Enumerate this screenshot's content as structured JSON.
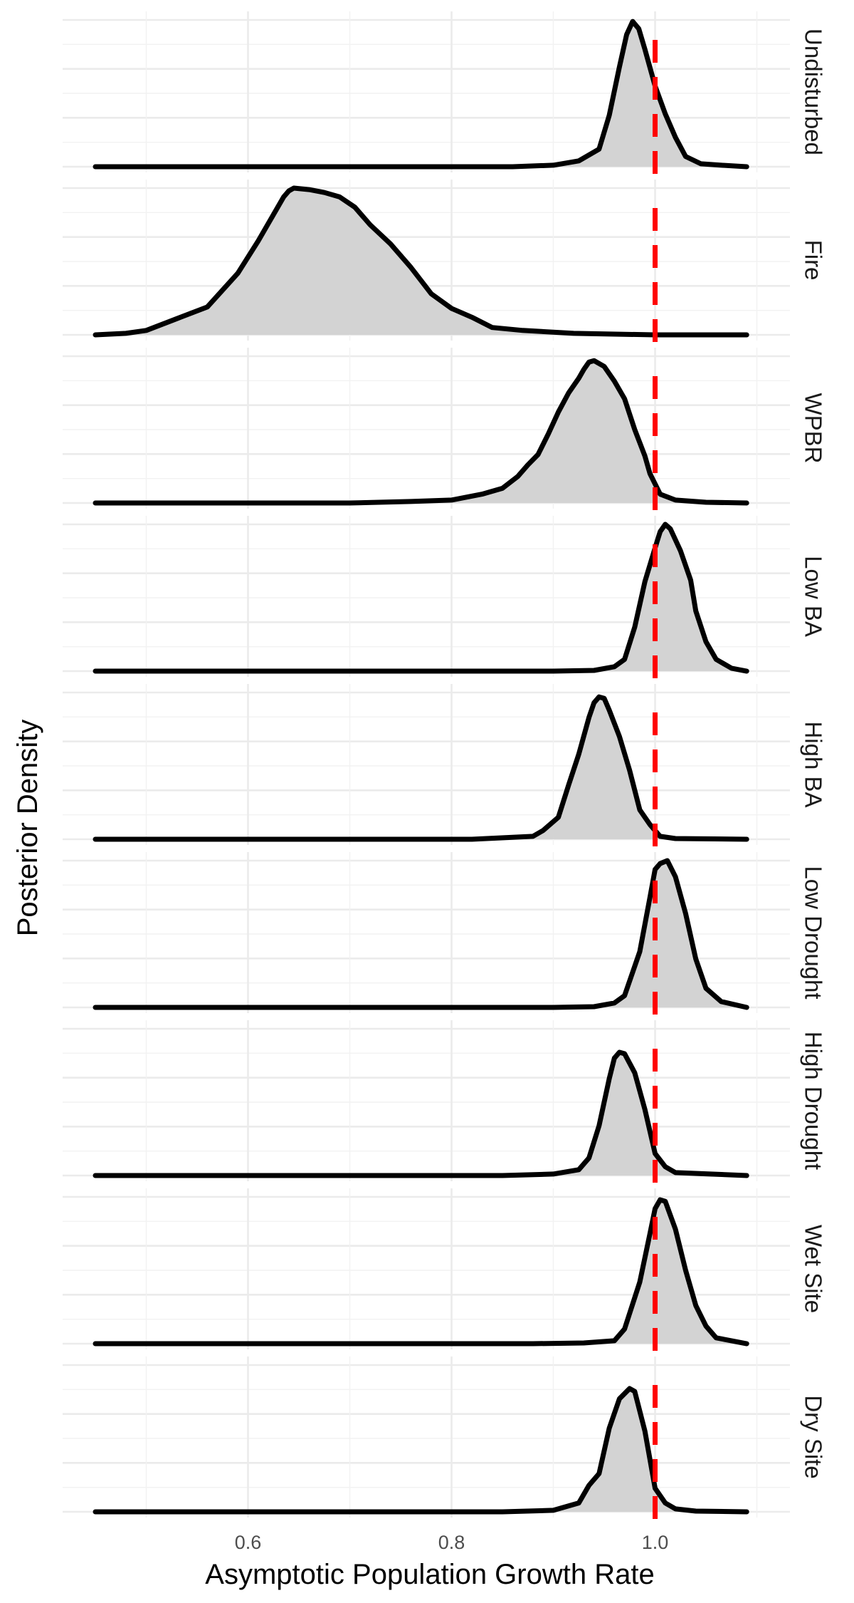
{
  "chart_data": {
    "type": "area",
    "facet_layout": "stacked vertically, one panel per treatment, strip labels on right (rotated)",
    "xlabel": "Asymptotic Population Growth Rate",
    "ylabel": "Posterior Density",
    "xlim": [
      0.42,
      1.13
    ],
    "x_ticks": [
      0.6,
      0.8,
      1.0
    ],
    "x_tick_labels": [
      "0.6",
      "0.8",
      "1.0"
    ],
    "reference_line": {
      "x": 1.0,
      "color": "#ff0000",
      "style": "dashed"
    },
    "fill_color": "#d3d3d3",
    "line_color": "#000000",
    "grid": true,
    "panels": [
      {
        "label": "Undisturbed",
        "points": [
          [
            0.45,
            0
          ],
          [
            0.8,
            0
          ],
          [
            0.86,
            0
          ],
          [
            0.9,
            0.01
          ],
          [
            0.925,
            0.04
          ],
          [
            0.945,
            0.12
          ],
          [
            0.955,
            0.35
          ],
          [
            0.965,
            0.68
          ],
          [
            0.972,
            0.9
          ],
          [
            0.978,
            0.99
          ],
          [
            0.984,
            0.94
          ],
          [
            0.99,
            0.8
          ],
          [
            1.0,
            0.55
          ],
          [
            1.01,
            0.36
          ],
          [
            1.02,
            0.2
          ],
          [
            1.03,
            0.07
          ],
          [
            1.045,
            0.02
          ],
          [
            1.065,
            0.01
          ],
          [
            1.09,
            0
          ]
        ]
      },
      {
        "label": "Fire",
        "points": [
          [
            0.45,
            0
          ],
          [
            0.48,
            0.01
          ],
          [
            0.5,
            0.03
          ],
          [
            0.53,
            0.11
          ],
          [
            0.56,
            0.19
          ],
          [
            0.59,
            0.42
          ],
          [
            0.61,
            0.64
          ],
          [
            0.625,
            0.82
          ],
          [
            0.635,
            0.94
          ],
          [
            0.64,
            0.98
          ],
          [
            0.645,
            1.0
          ],
          [
            0.66,
            0.99
          ],
          [
            0.675,
            0.97
          ],
          [
            0.69,
            0.94
          ],
          [
            0.705,
            0.87
          ],
          [
            0.72,
            0.75
          ],
          [
            0.74,
            0.62
          ],
          [
            0.76,
            0.46
          ],
          [
            0.78,
            0.28
          ],
          [
            0.8,
            0.18
          ],
          [
            0.82,
            0.12
          ],
          [
            0.84,
            0.05
          ],
          [
            0.87,
            0.03
          ],
          [
            0.92,
            0.01
          ],
          [
            1.0,
            0
          ],
          [
            1.09,
            0
          ]
        ]
      },
      {
        "label": "WPBR",
        "points": [
          [
            0.45,
            0
          ],
          [
            0.7,
            0
          ],
          [
            0.76,
            0.01
          ],
          [
            0.8,
            0.02
          ],
          [
            0.83,
            0.06
          ],
          [
            0.85,
            0.1
          ],
          [
            0.865,
            0.18
          ],
          [
            0.875,
            0.26
          ],
          [
            0.885,
            0.33
          ],
          [
            0.895,
            0.47
          ],
          [
            0.905,
            0.62
          ],
          [
            0.915,
            0.75
          ],
          [
            0.925,
            0.85
          ],
          [
            0.93,
            0.91
          ],
          [
            0.935,
            0.96
          ],
          [
            0.94,
            0.97
          ],
          [
            0.95,
            0.93
          ],
          [
            0.96,
            0.83
          ],
          [
            0.97,
            0.71
          ],
          [
            0.98,
            0.5
          ],
          [
            0.99,
            0.32
          ],
          [
            0.995,
            0.2
          ],
          [
            1.005,
            0.06
          ],
          [
            1.02,
            0.02
          ],
          [
            1.05,
            0.005
          ],
          [
            1.09,
            0
          ]
        ]
      },
      {
        "label": "Low BA",
        "points": [
          [
            0.45,
            0
          ],
          [
            0.9,
            0
          ],
          [
            0.94,
            0.005
          ],
          [
            0.96,
            0.03
          ],
          [
            0.97,
            0.08
          ],
          [
            0.98,
            0.3
          ],
          [
            0.99,
            0.61
          ],
          [
            1.0,
            0.84
          ],
          [
            1.005,
            0.95
          ],
          [
            1.01,
            1.0
          ],
          [
            1.015,
            0.97
          ],
          [
            1.025,
            0.82
          ],
          [
            1.035,
            0.62
          ],
          [
            1.04,
            0.41
          ],
          [
            1.05,
            0.2
          ],
          [
            1.06,
            0.08
          ],
          [
            1.075,
            0.02
          ],
          [
            1.09,
            0
          ]
        ]
      },
      {
        "label": "High BA",
        "points": [
          [
            0.45,
            0
          ],
          [
            0.82,
            0
          ],
          [
            0.88,
            0.02
          ],
          [
            0.89,
            0.06
          ],
          [
            0.905,
            0.15
          ],
          [
            0.915,
            0.37
          ],
          [
            0.925,
            0.58
          ],
          [
            0.935,
            0.83
          ],
          [
            0.94,
            0.93
          ],
          [
            0.945,
            0.97
          ],
          [
            0.95,
            0.96
          ],
          [
            0.955,
            0.88
          ],
          [
            0.965,
            0.7
          ],
          [
            0.975,
            0.47
          ],
          [
            0.985,
            0.2
          ],
          [
            0.995,
            0.1
          ],
          [
            1.005,
            0.02
          ],
          [
            1.02,
            0.005
          ],
          [
            1.09,
            0
          ]
        ]
      },
      {
        "label": "Low Drought",
        "points": [
          [
            0.45,
            0
          ],
          [
            0.9,
            0
          ],
          [
            0.94,
            0.005
          ],
          [
            0.96,
            0.03
          ],
          [
            0.97,
            0.08
          ],
          [
            0.985,
            0.38
          ],
          [
            0.995,
            0.75
          ],
          [
            1.0,
            0.94
          ],
          [
            1.005,
            0.98
          ],
          [
            1.012,
            1.0
          ],
          [
            1.02,
            0.89
          ],
          [
            1.03,
            0.64
          ],
          [
            1.04,
            0.33
          ],
          [
            1.05,
            0.13
          ],
          [
            1.065,
            0.04
          ],
          [
            1.09,
            0
          ]
        ]
      },
      {
        "label": "High Drought",
        "points": [
          [
            0.45,
            0
          ],
          [
            0.85,
            0
          ],
          [
            0.9,
            0.01
          ],
          [
            0.925,
            0.04
          ],
          [
            0.935,
            0.12
          ],
          [
            0.945,
            0.34
          ],
          [
            0.955,
            0.66
          ],
          [
            0.96,
            0.8
          ],
          [
            0.965,
            0.84
          ],
          [
            0.97,
            0.83
          ],
          [
            0.98,
            0.7
          ],
          [
            0.99,
            0.45
          ],
          [
            1.0,
            0.15
          ],
          [
            1.01,
            0.06
          ],
          [
            1.02,
            0.02
          ],
          [
            1.09,
            0
          ]
        ]
      },
      {
        "label": "Wet Site",
        "points": [
          [
            0.45,
            0
          ],
          [
            0.88,
            0
          ],
          [
            0.93,
            0.005
          ],
          [
            0.96,
            0.02
          ],
          [
            0.97,
            0.1
          ],
          [
            0.985,
            0.42
          ],
          [
            0.995,
            0.75
          ],
          [
            1.0,
            0.92
          ],
          [
            1.005,
            0.98
          ],
          [
            1.01,
            0.97
          ],
          [
            1.02,
            0.78
          ],
          [
            1.03,
            0.5
          ],
          [
            1.04,
            0.26
          ],
          [
            1.05,
            0.12
          ],
          [
            1.06,
            0.04
          ],
          [
            1.075,
            0.02
          ],
          [
            1.09,
            0
          ]
        ]
      },
      {
        "label": "Dry Site",
        "points": [
          [
            0.45,
            0
          ],
          [
            0.85,
            0
          ],
          [
            0.9,
            0.01
          ],
          [
            0.925,
            0.06
          ],
          [
            0.935,
            0.18
          ],
          [
            0.945,
            0.26
          ],
          [
            0.955,
            0.57
          ],
          [
            0.965,
            0.77
          ],
          [
            0.975,
            0.84
          ],
          [
            0.98,
            0.82
          ],
          [
            0.99,
            0.55
          ],
          [
            1.0,
            0.16
          ],
          [
            1.01,
            0.06
          ],
          [
            1.02,
            0.02
          ],
          [
            1.04,
            0.005
          ],
          [
            1.09,
            0
          ]
        ]
      }
    ]
  }
}
